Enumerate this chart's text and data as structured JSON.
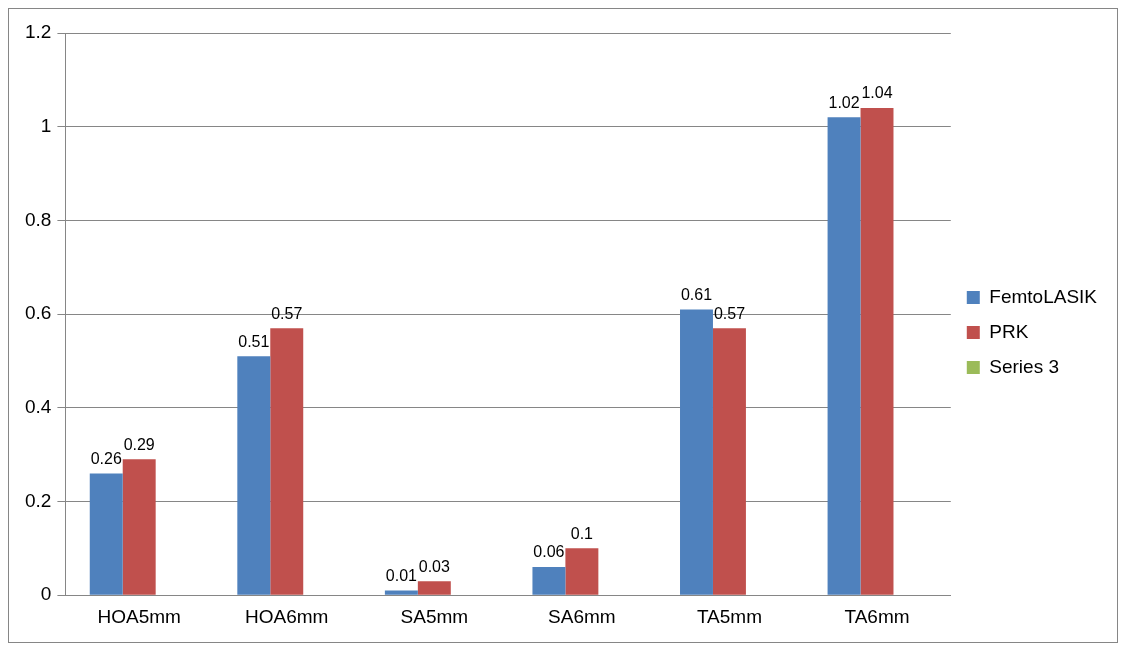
{
  "chart_data": {
    "type": "bar",
    "categories": [
      "HOA5mm",
      "HOA6mm",
      "SA5mm",
      "SA6mm",
      "TA5mm",
      "TA6mm"
    ],
    "series": [
      {
        "name": "FemtoLASIK",
        "color": "#4f81bd",
        "values": [
          0.26,
          0.51,
          0.01,
          0.06,
          0.61,
          1.02
        ]
      },
      {
        "name": "PRK",
        "color": "#c0504d",
        "values": [
          0.29,
          0.57,
          0.03,
          0.1,
          0.57,
          1.04
        ]
      },
      {
        "name": "Series 3",
        "color": "#9bbb59",
        "values": [
          null,
          null,
          null,
          null,
          null,
          null
        ]
      }
    ],
    "ylim": [
      0,
      1.2
    ],
    "yticks": [
      0,
      0.2,
      0.4,
      0.6,
      0.8,
      1,
      1.2
    ],
    "grid": "y",
    "legend": "right",
    "data_labels": true
  }
}
